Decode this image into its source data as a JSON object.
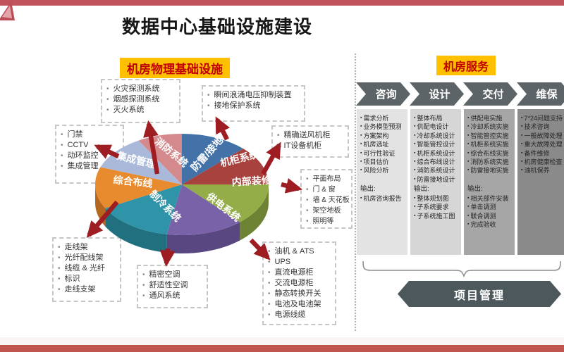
{
  "header": {
    "title": "数据中心基础设施建设"
  },
  "left_section": {
    "badge": "机房物理基础设施",
    "boxes": [
      {
        "id": "fire",
        "items": [
          "火灾探测系统",
          "烟感探测系统",
          "灭火系统"
        ]
      },
      {
        "id": "surge",
        "items": [
          "瞬间浪涌电压抑制装置",
          "接地保护系统"
        ]
      },
      {
        "id": "access",
        "items": [
          "门禁",
          "CCTV",
          "动环监控",
          "集成管理"
        ]
      },
      {
        "id": "rack",
        "items": [
          "精确送风机柜",
          "IT设备机柜"
        ]
      },
      {
        "id": "interior",
        "items": [
          "平面布局",
          "门 & 窗",
          "墙 & 天花板",
          "架空地板",
          "照明等"
        ]
      },
      {
        "id": "cabling",
        "items": [
          "走线架",
          "光纤配线架",
          "线缆 & 光纤",
          "标识",
          "走线支架"
        ]
      },
      {
        "id": "hvac",
        "items": [
          "精密空调",
          "舒适性空调",
          "通风系统"
        ]
      },
      {
        "id": "power",
        "items": [
          "油机 & ATS",
          "UPS",
          "直流电源柜",
          "交流电源柜",
          "静态转换开关",
          "电池及电池架",
          "电源线缆"
        ]
      }
    ]
  },
  "chart_data": {
    "type": "pie",
    "title": "机房物理基础设施",
    "legend_position": "on-slice",
    "slices": [
      {
        "label": "防雷/接地",
        "angle": 45,
        "color": "#4272a8",
        "side": "#2e5480"
      },
      {
        "label": "机柜系统",
        "angle": 45,
        "color": "#a8423e",
        "side": "#7c2f2c"
      },
      {
        "label": "内部装修",
        "angle": 48,
        "color": "#94ad49",
        "side": "#6d8233"
      },
      {
        "label": "供电系统",
        "angle": 52,
        "color": "#7a62a8",
        "side": "#584781"
      },
      {
        "label": "制冷系统",
        "angle": 52,
        "color": "#2f94a8",
        "side": "#20707f"
      },
      {
        "label": "综合布线",
        "angle": 48,
        "color": "#e88b2e",
        "side": "#b5671d"
      },
      {
        "label": "集成管理",
        "angle": 40,
        "color": "#aab9d9",
        "side": "#8193b8"
      },
      {
        "label": "消防系统",
        "angle": 30,
        "color": "#d48a8c",
        "side": "#a86668"
      }
    ]
  },
  "right_section": {
    "badge": "机房服务",
    "output_label": "输出:",
    "phases": [
      {
        "label": "咨询",
        "column_color": "#e3e3e3",
        "items": [
          "需求分析",
          "业务模型预测",
          "方案架构",
          "机房选址",
          "可行性验证",
          "项目估价",
          "风险分析"
        ],
        "outputs": [
          "机房咨询报告"
        ]
      },
      {
        "label": "设计",
        "column_color": "#d6d6d6",
        "items": [
          "整体布局",
          "供配电设计",
          "冷却系统设计",
          "智能管控设计",
          "机柜系统设计",
          "综合布线设计",
          "消防系统设计",
          "防雷接地设计"
        ],
        "outputs": [
          "整体规划图",
          "子系统要求",
          "子系统施工图"
        ]
      },
      {
        "label": "交付",
        "column_color": "#a6a6a6",
        "items": [
          "供配电实施",
          "冷却系统实施",
          "智能管控实施",
          "机柜系统实施",
          "综合布线实施",
          "消防系统实施",
          "防雷接地实施"
        ],
        "outputs": [
          "相关部件安装",
          "单击调测",
          "联合调测",
          "完成验收"
        ]
      },
      {
        "label": "维保",
        "column_color": "#8a8a8a",
        "items": [
          "7*24问题支持",
          "技术咨询",
          "一般故障处理",
          "重大故障处理",
          "备件维修",
          "机房健康检查",
          "油机保养"
        ],
        "outputs": []
      }
    ],
    "banner": "项目管理"
  },
  "colors": {
    "accent_bar_top": "#c0535b",
    "accent_bar_bottom": "#c0544f",
    "badge_bg": "#ffc000",
    "badge_text": "#c00000",
    "arrow": "#9e1d22",
    "chevron": "#5c6467",
    "banner": "#4d585c"
  }
}
